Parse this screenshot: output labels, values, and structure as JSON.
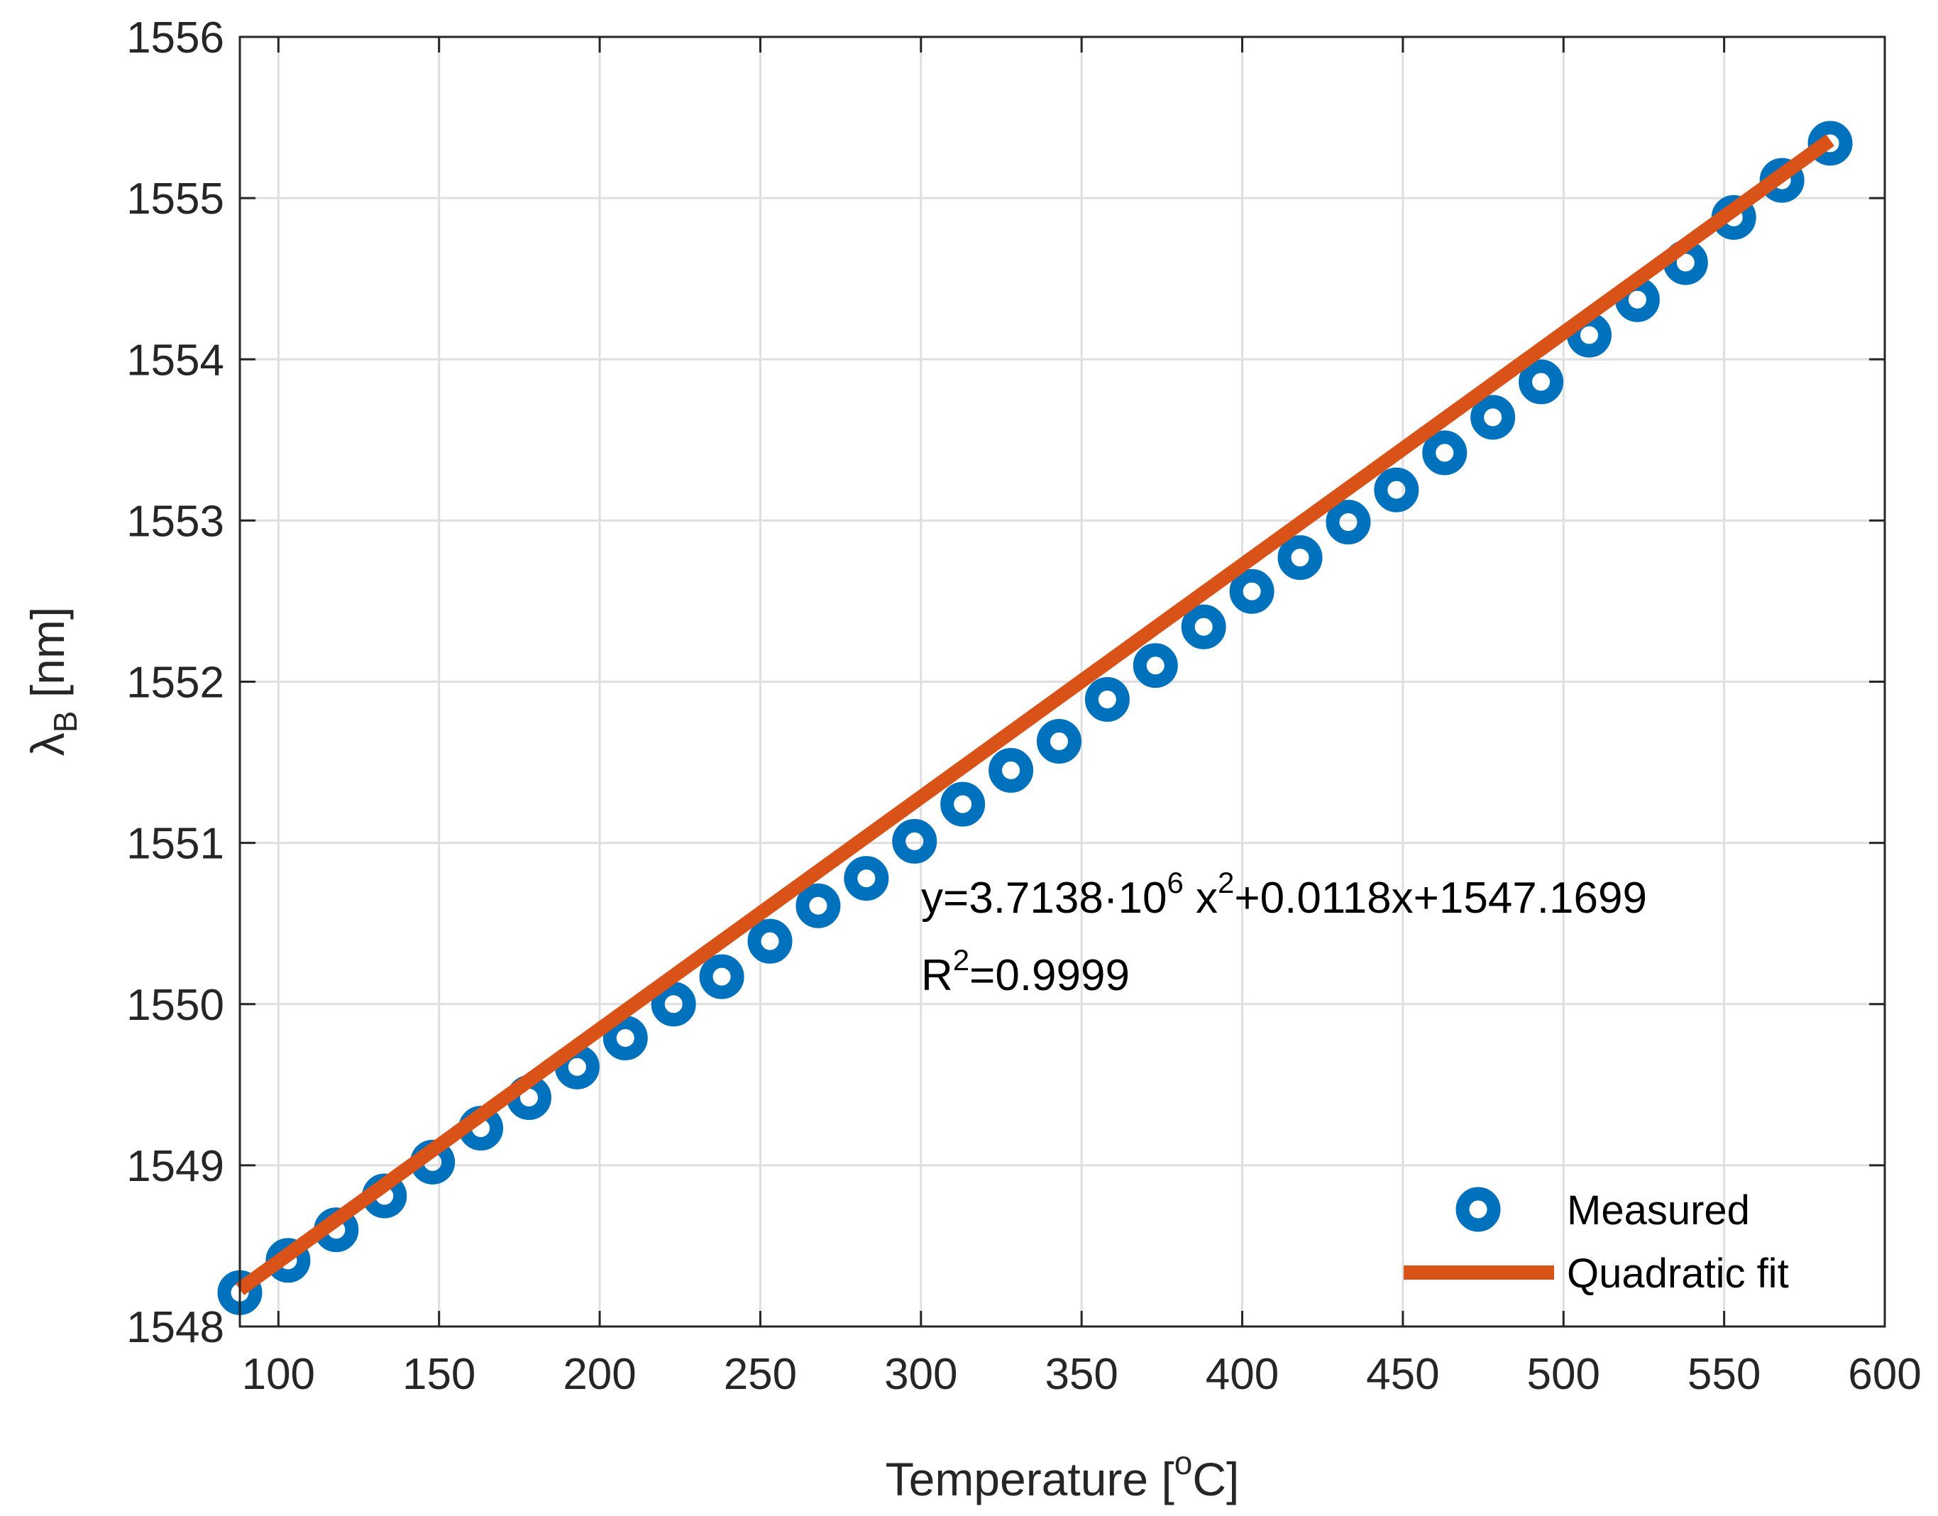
{
  "chart_data": {
    "type": "scatter",
    "title": "",
    "xlabel": {
      "main": "Temperature [",
      "sup": "o",
      "tail": "C]"
    },
    "ylabel": {
      "symbol": "λ",
      "sub": "B",
      "tail": " [nm]"
    },
    "xlim": [
      88,
      600
    ],
    "ylim": [
      1548,
      1556
    ],
    "xticks": [
      100,
      150,
      200,
      250,
      300,
      350,
      400,
      450,
      500,
      550,
      600
    ],
    "yticks": [
      1548,
      1549,
      1550,
      1551,
      1552,
      1553,
      1554,
      1555,
      1556
    ],
    "grid": true,
    "series": [
      {
        "name": "Measured",
        "kind": "markers",
        "color": "#0072BD",
        "x": [
          88,
          103,
          118,
          133,
          148,
          163,
          178,
          193,
          208,
          223,
          238,
          253,
          268,
          283,
          298,
          313,
          328,
          343,
          358,
          373,
          388,
          403,
          418,
          433,
          448,
          463,
          478,
          493,
          508,
          523,
          538,
          553,
          568,
          583
        ],
        "y": [
          1548.21,
          1548.41,
          1548.6,
          1548.81,
          1549.02,
          1549.23,
          1549.42,
          1549.61,
          1549.79,
          1550.0,
          1550.17,
          1550.39,
          1550.61,
          1550.78,
          1551.01,
          1551.24,
          1551.45,
          1551.63,
          1551.89,
          1552.1,
          1552.34,
          1552.56,
          1552.77,
          1552.99,
          1553.19,
          1553.42,
          1553.64,
          1553.86,
          1554.15,
          1554.37,
          1554.6,
          1554.88,
          1555.11,
          1555.34
        ]
      },
      {
        "name": "Quadratic fit",
        "kind": "line",
        "color": "#D95319",
        "x": [
          88,
          583
        ],
        "y": [
          1548.23,
          1555.36
        ]
      }
    ],
    "annotation": {
      "eq_a": "y=3.7138·10",
      "eq_a_sup": "6",
      "eq_b": " x",
      "eq_b_sup": "2",
      "eq_c": "+0.0118x+1547.1699",
      "r_a": "R",
      "r_sup": "2",
      "r_b": "=0.9999"
    },
    "legend": {
      "placement": "bottom-right",
      "entries": [
        "Measured",
        "Quadratic fit"
      ]
    }
  }
}
